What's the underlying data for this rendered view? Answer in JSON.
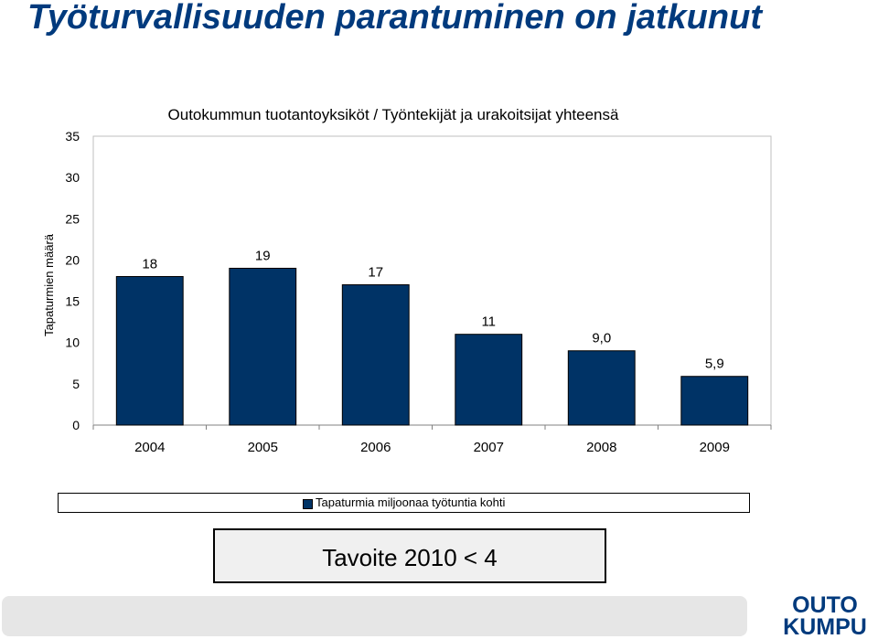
{
  "title": "Työturvallisuuden parantuminen on jatkunut",
  "chart_data": {
    "type": "bar",
    "title": "Outokummun tuotantoyksiköt / Työntekijät ja urakoitsijat yhteensä",
    "xlabel": "",
    "ylabel": "Tapaturmien määrä",
    "categories": [
      "2004",
      "2005",
      "2006",
      "2007",
      "2008",
      "2009"
    ],
    "series": [
      {
        "name": "Tapaturmia miljoonaa työtuntia kohti",
        "values": [
          18,
          19,
          17,
          11,
          9.0,
          5.9
        ],
        "labels": [
          "18",
          "19",
          "17",
          "11",
          "9,0",
          "5,9"
        ]
      }
    ],
    "ylim": [
      0,
      35
    ],
    "yticks": [
      0,
      5,
      10,
      15,
      20,
      25,
      30,
      35
    ],
    "grid": false,
    "legend": "bottom",
    "bar_color": "#003366"
  },
  "goal": {
    "text": "Tavoite 2010 < 4"
  },
  "logo": {
    "line1": "OUTO",
    "line2": "KUMPU",
    "color": "#003a7d"
  }
}
